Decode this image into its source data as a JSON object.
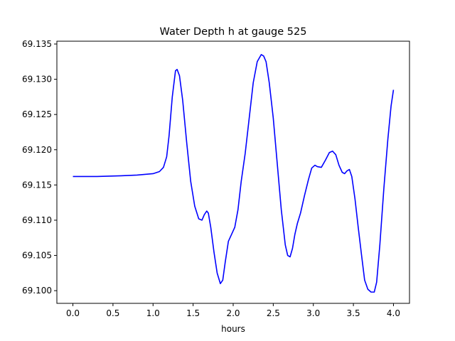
{
  "chart_data": {
    "type": "line",
    "title": "Water Depth h at gauge 525",
    "xlabel": "hours",
    "ylabel": "",
    "xlim": [
      -0.2,
      4.2
    ],
    "ylim": [
      69.0982,
      69.1354
    ],
    "xticks": [
      0.0,
      0.5,
      1.0,
      1.5,
      2.0,
      2.5,
      3.0,
      3.5,
      4.0
    ],
    "xtick_labels": [
      "0.0",
      "0.5",
      "1.0",
      "1.5",
      "2.0",
      "2.5",
      "3.0",
      "3.5",
      "4.0"
    ],
    "yticks": [
      69.1,
      69.105,
      69.11,
      69.115,
      69.12,
      69.125,
      69.13,
      69.135
    ],
    "ytick_labels": [
      "69.100",
      "69.105",
      "69.110",
      "69.115",
      "69.120",
      "69.125",
      "69.130",
      "69.135"
    ],
    "grid": false,
    "series": [
      {
        "color": "#0000ff",
        "x": [
          0.0,
          0.3,
          0.6,
          0.8,
          1.0,
          1.08,
          1.13,
          1.17,
          1.2,
          1.24,
          1.28,
          1.3,
          1.33,
          1.37,
          1.42,
          1.47,
          1.52,
          1.57,
          1.61,
          1.64,
          1.67,
          1.69,
          1.72,
          1.76,
          1.8,
          1.84,
          1.87,
          1.9,
          1.94,
          1.98,
          2.02,
          2.06,
          2.1,
          2.15,
          2.2,
          2.25,
          2.3,
          2.35,
          2.38,
          2.41,
          2.45,
          2.5,
          2.55,
          2.6,
          2.65,
          2.68,
          2.71,
          2.74,
          2.77,
          2.8,
          2.84,
          2.89,
          2.94,
          2.98,
          3.02,
          3.05,
          3.1,
          3.15,
          3.2,
          3.24,
          3.28,
          3.32,
          3.36,
          3.39,
          3.42,
          3.45,
          3.48,
          3.52,
          3.56,
          3.6,
          3.64,
          3.68,
          3.72,
          3.76,
          3.79,
          3.83,
          3.88,
          3.93,
          3.97,
          4.0
        ],
        "y": [
          69.1162,
          69.1162,
          69.1163,
          69.1164,
          69.1166,
          69.1169,
          69.1175,
          69.119,
          69.122,
          69.1275,
          69.1312,
          69.1314,
          69.1305,
          69.127,
          69.121,
          69.1155,
          69.112,
          69.1102,
          69.11,
          69.1108,
          69.1113,
          69.111,
          69.109,
          69.1055,
          69.1025,
          69.101,
          69.1015,
          69.104,
          69.107,
          69.108,
          69.109,
          69.1115,
          69.1155,
          69.1195,
          69.1245,
          69.1295,
          69.1325,
          69.1335,
          69.1333,
          69.1325,
          69.1295,
          69.1245,
          69.118,
          69.1115,
          69.1065,
          69.105,
          69.1048,
          69.106,
          69.108,
          69.1095,
          69.111,
          69.1135,
          69.1158,
          69.1174,
          69.1178,
          69.1176,
          69.1175,
          69.1185,
          69.1196,
          69.1198,
          69.1193,
          69.1178,
          69.1168,
          69.1166,
          69.117,
          69.1172,
          69.1162,
          69.113,
          69.109,
          69.1052,
          69.1015,
          69.1002,
          69.0998,
          69.0998,
          69.1012,
          69.1065,
          69.1145,
          69.1215,
          69.1262,
          69.1285
        ]
      }
    ]
  }
}
